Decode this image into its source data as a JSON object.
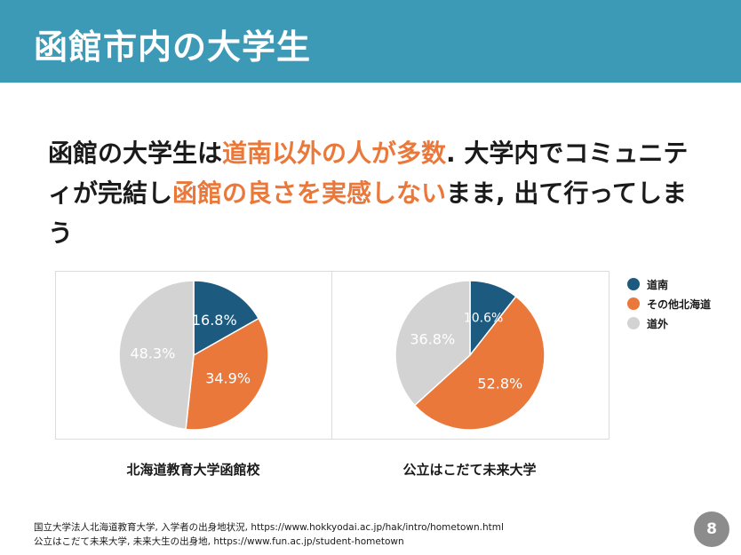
{
  "header": {
    "title": "函館市内の大学生"
  },
  "headline": {
    "segments": [
      {
        "text": "函館の大学生は",
        "highlight": false
      },
      {
        "text": "道南以外の人が多数",
        "highlight": true
      },
      {
        "text": ". 大学内でコミュニティが完結し",
        "highlight": false
      },
      {
        "text": "函館の良さを実感しない",
        "highlight": true
      },
      {
        "text": "まま, 出て行ってしまう",
        "highlight": false
      }
    ],
    "highlight_color": "#e9783a"
  },
  "legend": {
    "items": [
      {
        "label": "道南",
        "color": "#1c5a80"
      },
      {
        "label": "その他北海道",
        "color": "#e9783a"
      },
      {
        "label": "道外",
        "color": "#d3d3d3"
      }
    ]
  },
  "chart_data": [
    {
      "type": "pie",
      "title": "北海道教育大学函館校",
      "slices": [
        {
          "name": "道南",
          "value": 16.8,
          "label": "16.8%",
          "color": "#1c5a80"
        },
        {
          "name": "その他北海道",
          "value": 34.9,
          "label": "34.9%",
          "color": "#e9783a"
        },
        {
          "name": "道外",
          "value": 48.3,
          "label": "48.3%",
          "color": "#d3d3d3"
        }
      ]
    },
    {
      "type": "pie",
      "title": "公立はこだて未来大学",
      "slices": [
        {
          "name": "道南",
          "value": 10.6,
          "label": "10.6%",
          "color": "#1c5a80"
        },
        {
          "name": "その他北海道",
          "value": 52.8,
          "label": "52.8%",
          "color": "#e9783a"
        },
        {
          "name": "道外",
          "value": 36.8,
          "label": "36.8%",
          "color": "#d3d3d3"
        }
      ]
    }
  ],
  "sources": {
    "line1": "国立大学法人北海道教育大学, 入学者の出身地状況, https://www.hokkyodai.ac.jp/hak/intro/hometown.html",
    "line2": "公立はこだて未来大学, 未来大生の出身地, https://www.fun.ac.jp/student-hometown"
  },
  "page_number": "8"
}
